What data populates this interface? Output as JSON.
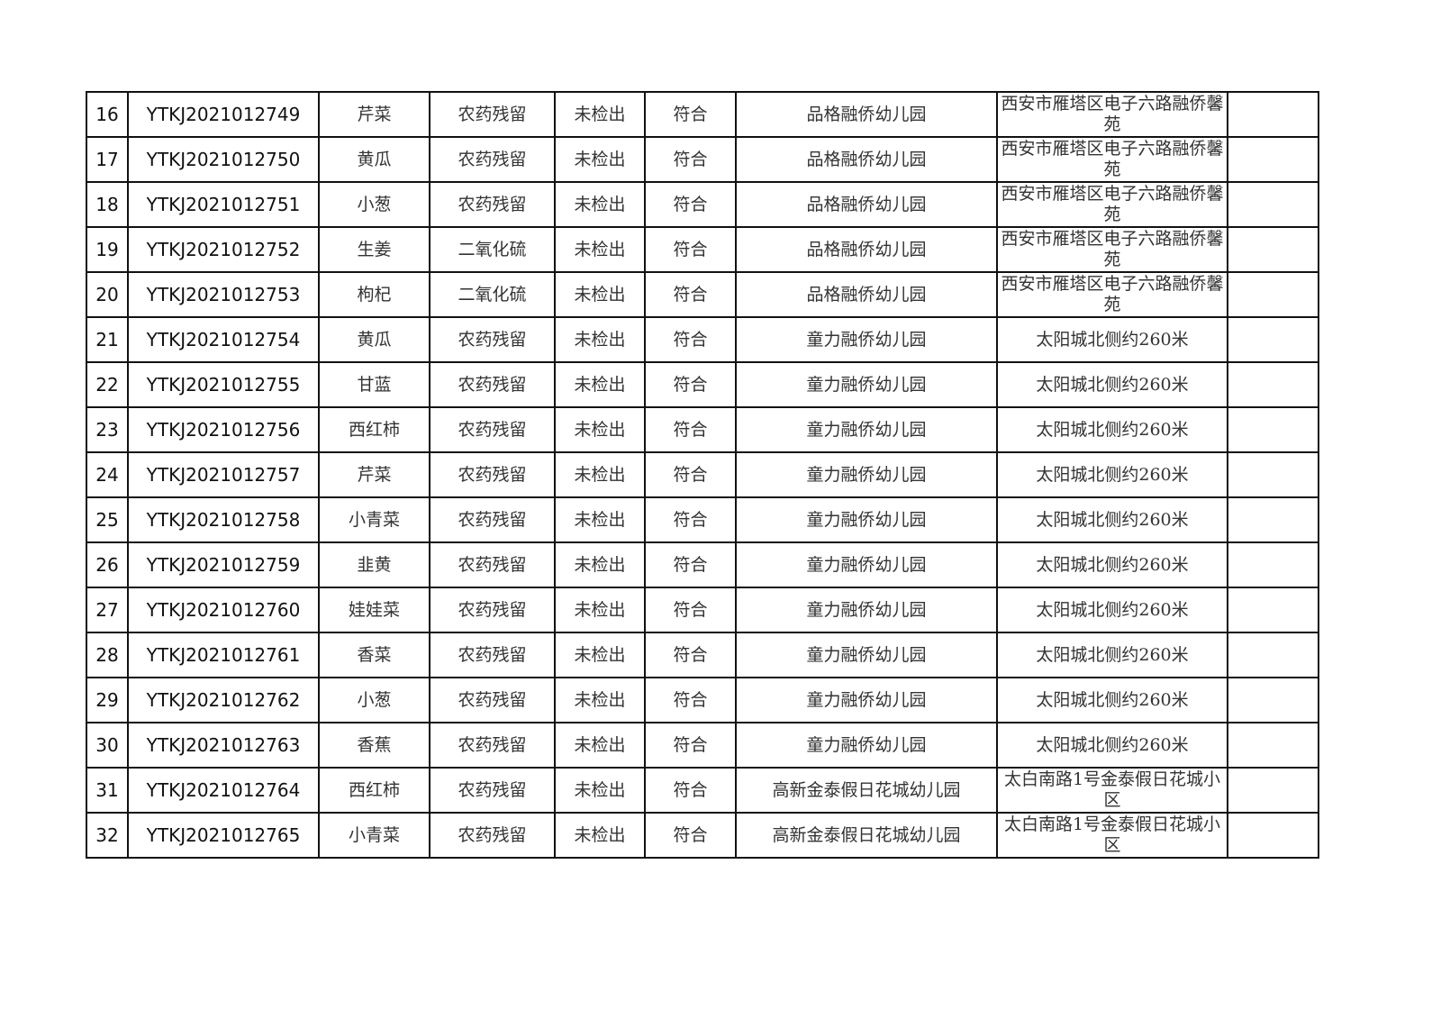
{
  "rows": [
    {
      "no": "16",
      "code": "YTKJ2021012749",
      "sample": "芹菜",
      "item": "农药残留",
      "result": "未检出",
      "verdict": "符合",
      "unit": "品格融侨幼儿园",
      "address": "西安市雁塔区电子六路融侨馨苑",
      "note": ""
    },
    {
      "no": "17",
      "code": "YTKJ2021012750",
      "sample": "黄瓜",
      "item": "农药残留",
      "result": "未检出",
      "verdict": "符合",
      "unit": "品格融侨幼儿园",
      "address": "西安市雁塔区电子六路融侨馨苑",
      "note": ""
    },
    {
      "no": "18",
      "code": "YTKJ2021012751",
      "sample": "小葱",
      "item": "农药残留",
      "result": "未检出",
      "verdict": "符合",
      "unit": "品格融侨幼儿园",
      "address": "西安市雁塔区电子六路融侨馨苑",
      "note": ""
    },
    {
      "no": "19",
      "code": "YTKJ2021012752",
      "sample": "生姜",
      "item": "二氧化硫",
      "result": "未检出",
      "verdict": "符合",
      "unit": "品格融侨幼儿园",
      "address": "西安市雁塔区电子六路融侨馨苑",
      "note": ""
    },
    {
      "no": "20",
      "code": "YTKJ2021012753",
      "sample": "枸杞",
      "item": "二氧化硫",
      "result": "未检出",
      "verdict": "符合",
      "unit": "品格融侨幼儿园",
      "address": "西安市雁塔区电子六路融侨馨苑",
      "note": ""
    },
    {
      "no": "21",
      "code": "YTKJ2021012754",
      "sample": "黄瓜",
      "item": "农药残留",
      "result": "未检出",
      "verdict": "符合",
      "unit": "童力融侨幼儿园",
      "address": "太阳城北侧约260米",
      "note": ""
    },
    {
      "no": "22",
      "code": "YTKJ2021012755",
      "sample": "甘蓝",
      "item": "农药残留",
      "result": "未检出",
      "verdict": "符合",
      "unit": "童力融侨幼儿园",
      "address": "太阳城北侧约260米",
      "note": ""
    },
    {
      "no": "23",
      "code": "YTKJ2021012756",
      "sample": "西红柿",
      "item": "农药残留",
      "result": "未检出",
      "verdict": "符合",
      "unit": "童力融侨幼儿园",
      "address": "太阳城北侧约260米",
      "note": ""
    },
    {
      "no": "24",
      "code": "YTKJ2021012757",
      "sample": "芹菜",
      "item": "农药残留",
      "result": "未检出",
      "verdict": "符合",
      "unit": "童力融侨幼儿园",
      "address": "太阳城北侧约260米",
      "note": ""
    },
    {
      "no": "25",
      "code": "YTKJ2021012758",
      "sample": "小青菜",
      "item": "农药残留",
      "result": "未检出",
      "verdict": "符合",
      "unit": "童力融侨幼儿园",
      "address": "太阳城北侧约260米",
      "note": ""
    },
    {
      "no": "26",
      "code": "YTKJ2021012759",
      "sample": "韭黄",
      "item": "农药残留",
      "result": "未检出",
      "verdict": "符合",
      "unit": "童力融侨幼儿园",
      "address": "太阳城北侧约260米",
      "note": ""
    },
    {
      "no": "27",
      "code": "YTKJ2021012760",
      "sample": "娃娃菜",
      "item": "农药残留",
      "result": "未检出",
      "verdict": "符合",
      "unit": "童力融侨幼儿园",
      "address": "太阳城北侧约260米",
      "note": ""
    },
    {
      "no": "28",
      "code": "YTKJ2021012761",
      "sample": "香菜",
      "item": "农药残留",
      "result": "未检出",
      "verdict": "符合",
      "unit": "童力融侨幼儿园",
      "address": "太阳城北侧约260米",
      "note": ""
    },
    {
      "no": "29",
      "code": "YTKJ2021012762",
      "sample": "小葱",
      "item": "农药残留",
      "result": "未检出",
      "verdict": "符合",
      "unit": "童力融侨幼儿园",
      "address": "太阳城北侧约260米",
      "note": ""
    },
    {
      "no": "30",
      "code": "YTKJ2021012763",
      "sample": "香蕉",
      "item": "农药残留",
      "result": "未检出",
      "verdict": "符合",
      "unit": "童力融侨幼儿园",
      "address": "太阳城北侧约260米",
      "note": ""
    },
    {
      "no": "31",
      "code": "YTKJ2021012764",
      "sample": "西红柿",
      "item": "农药残留",
      "result": "未检出",
      "verdict": "符合",
      "unit": "高新金泰假日花城幼儿园",
      "address": "太白南路1号金泰假日花城小区",
      "note": ""
    },
    {
      "no": "32",
      "code": "YTKJ2021012765",
      "sample": "小青菜",
      "item": "农药残留",
      "result": "未检出",
      "verdict": "符合",
      "unit": "高新金泰假日花城幼儿园",
      "address": "太白南路1号金泰假日花城小区",
      "note": ""
    }
  ]
}
